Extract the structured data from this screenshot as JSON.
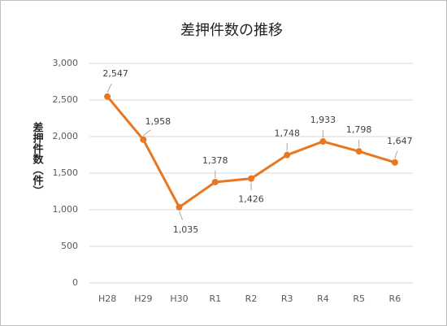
{
  "chart_data": {
    "type": "line",
    "title": "差押件数の推移",
    "y_label": "差押件数（件）",
    "categories": [
      "H28",
      "H29",
      "H30",
      "R1",
      "R2",
      "R3",
      "R4",
      "R5",
      "R6"
    ],
    "series": [
      {
        "name": "差押件数",
        "color": "#E87722",
        "values": [
          2547,
          1958,
          1035,
          1378,
          1426,
          1748,
          1933,
          1798,
          1647
        ],
        "value_labels": [
          "2,547",
          "1,958",
          "1,035",
          "1,378",
          "1,426",
          "1,748",
          "1,933",
          "1,798",
          "1,647"
        ]
      }
    ],
    "ylim": [
      0,
      3000
    ],
    "yticks": [
      0,
      500,
      {
        "value": 1000,
        "label": "1,000"
      },
      {
        "value": 1500,
        "label": "1,500"
      },
      {
        "value": 2000,
        "label": "2,000"
      },
      {
        "value": 2500,
        "label": "2,500"
      },
      {
        "value": 3000,
        "label": "3,000"
      }
    ],
    "grid": true
  }
}
